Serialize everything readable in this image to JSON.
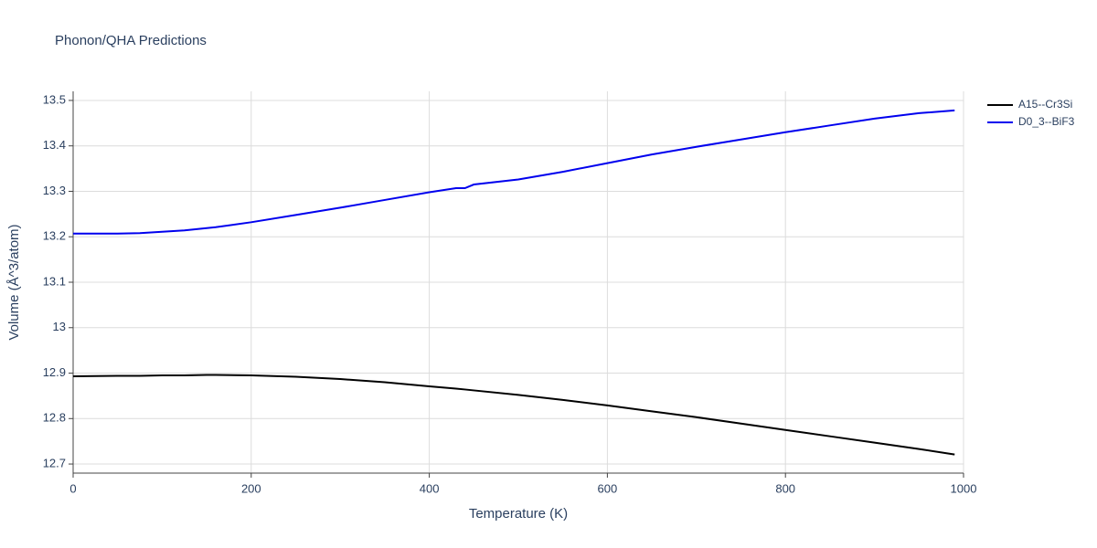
{
  "chart_data": {
    "type": "line",
    "title": "Phonon/QHA Predictions",
    "x_label": "Temperature (K)",
    "y_label": "Volume (Å^3/atom)",
    "x": [
      0,
      50,
      75,
      100,
      125,
      150,
      160,
      200,
      250,
      300,
      350,
      400,
      430,
      440,
      450,
      500,
      550,
      600,
      650,
      700,
      750,
      800,
      850,
      900,
      950,
      990
    ],
    "series": [
      {
        "name": "A15--Cr3Si",
        "color": "#000000",
        "values": [
          12.893,
          12.894,
          12.894,
          12.895,
          12.895,
          12.896,
          12.896,
          12.895,
          12.892,
          12.887,
          12.88,
          12.871,
          12.866,
          12.864,
          12.862,
          12.852,
          12.841,
          12.829,
          12.816,
          12.803,
          12.789,
          12.775,
          12.761,
          12.747,
          12.733,
          12.721
        ]
      },
      {
        "name": "D0_3--BiF3",
        "color": "#0000ee",
        "values": [
          13.207,
          13.207,
          13.208,
          13.211,
          13.214,
          13.219,
          13.221,
          13.232,
          13.248,
          13.264,
          13.281,
          13.298,
          13.307,
          13.307,
          13.315,
          13.326,
          13.343,
          13.362,
          13.381,
          13.398,
          13.414,
          13.43,
          13.445,
          13.46,
          13.472,
          13.478
        ]
      }
    ],
    "xlim": [
      0,
      1000
    ],
    "xticks": [
      0,
      200,
      400,
      600,
      800,
      1000
    ],
    "ylim": [
      12.68,
      13.52
    ],
    "yticks": [
      12.7,
      12.8,
      12.9,
      13,
      13.1,
      13.2,
      13.3,
      13.4,
      13.5
    ],
    "grid": true,
    "legend": "top-right"
  }
}
